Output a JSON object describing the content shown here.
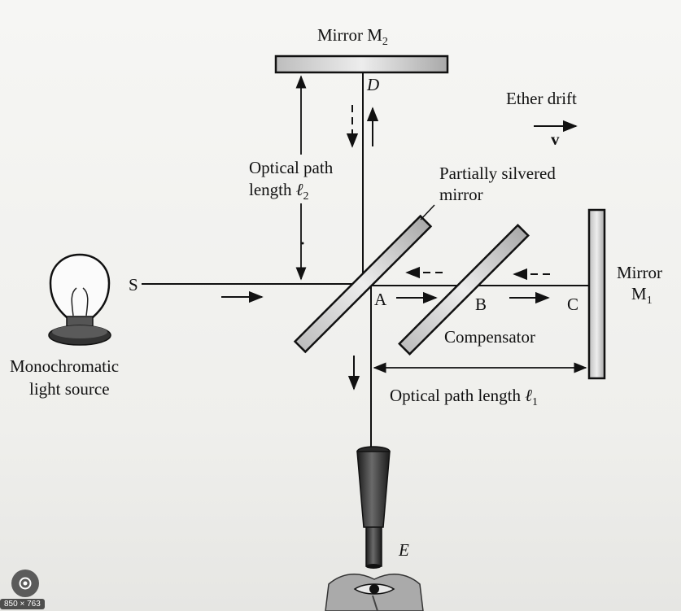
{
  "diagram": {
    "mirror_m2": {
      "text": "Mirror M",
      "sub": "2"
    },
    "point_d": "D",
    "ether_drift": "Ether drift",
    "velocity": "v",
    "optical_path_2": {
      "line1": "Optical path",
      "line2": "length ",
      "ell": "ℓ",
      "sub": "2"
    },
    "partially_silvered": {
      "line1": "Partially silvered",
      "line2": "mirror"
    },
    "source_s": "S",
    "point_a": "A",
    "point_b": "B",
    "point_c": "C",
    "mirror_m1": {
      "line1": "Mirror",
      "line2": "M",
      "sub": "1"
    },
    "compensator": "Compensator",
    "light_source": {
      "line1": "Monochromatic",
      "line2": "light source"
    },
    "optical_path_1": {
      "text": "Optical path length ",
      "ell": "ℓ",
      "sub": "1"
    },
    "point_e": "E"
  },
  "overlay": {
    "dimensions": "850 × 763",
    "lens_icon": "lens-search-icon"
  }
}
